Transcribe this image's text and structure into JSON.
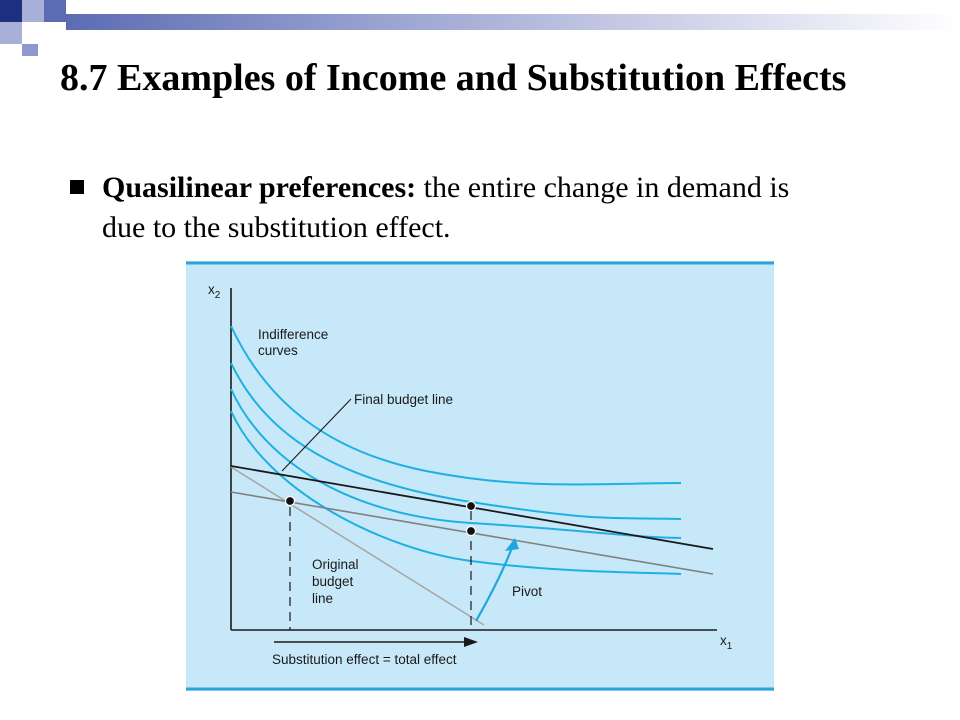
{
  "slide": {
    "title": "8.7 Examples of Income and Substitution Effects",
    "bullet": {
      "bold_text": "Quasilinear preferences:",
      "text": " the entire change in demand is due to the substitution effect."
    }
  },
  "diagram": {
    "axes": {
      "y_label": "x",
      "y_sub": "2",
      "x_label": "x",
      "x_sub": "1"
    },
    "labels": {
      "indifference_line1": "Indifference",
      "indifference_line2": "curves",
      "final_budget": "Final budget line",
      "original_line1": "Original",
      "original_line2": "budget",
      "original_line3": "line",
      "pivot": "Pivot",
      "substitution": "Substitution effect = total effect"
    },
    "colors": {
      "panel": "#c6e8f8",
      "panel_border": "#2aa4dc",
      "curves": "#1fb0e3",
      "final_line": "#1a1a1a",
      "original_line": "#a8a8a8",
      "pivot_line": "#808080",
      "arrow": "#1fa6dc"
    }
  }
}
